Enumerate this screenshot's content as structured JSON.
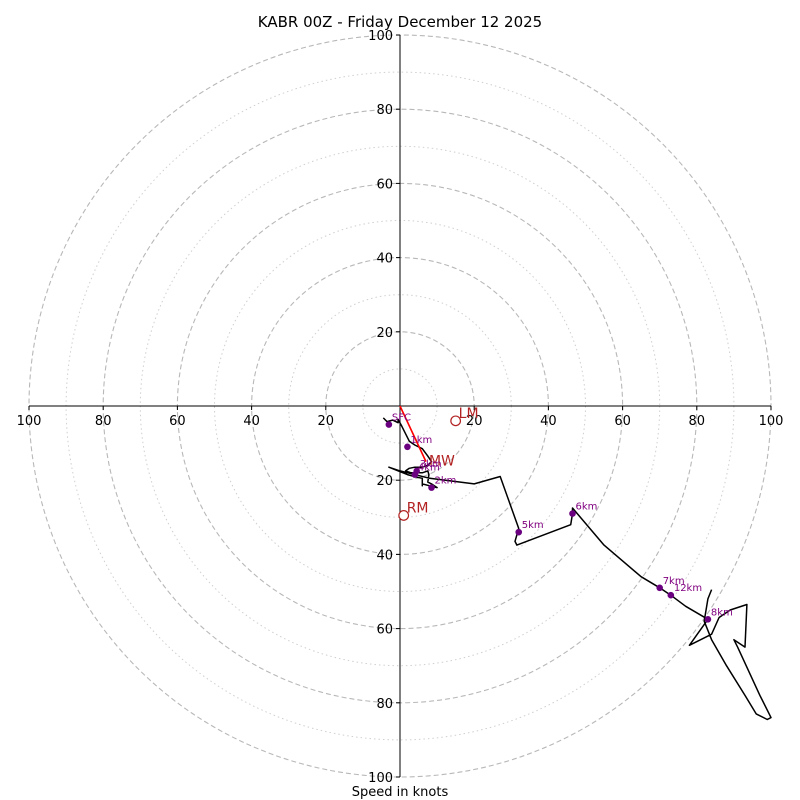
{
  "chart_data": {
    "type": "hodograph",
    "title": "KABR 00Z - Friday December 12 2025",
    "xlabel": "Speed in knots",
    "units": "knots",
    "range": [
      -100,
      100
    ],
    "rings_major": [
      20,
      40,
      60,
      80,
      100
    ],
    "rings_minor": [
      10,
      30,
      50,
      70,
      90
    ],
    "ticks": {
      "x": [
        {
          "value": -100,
          "label": "100"
        },
        {
          "value": -80,
          "label": "80"
        },
        {
          "value": -60,
          "label": "60"
        },
        {
          "value": -40,
          "label": "40"
        },
        {
          "value": -20,
          "label": "20"
        },
        {
          "value": 20,
          "label": "20"
        },
        {
          "value": 40,
          "label": "40"
        },
        {
          "value": 60,
          "label": "60"
        },
        {
          "value": 80,
          "label": "80"
        },
        {
          "value": 100,
          "label": "100"
        }
      ],
      "y": [
        {
          "value": 100,
          "label": "100"
        },
        {
          "value": 80,
          "label": "80"
        },
        {
          "value": 60,
          "label": "60"
        },
        {
          "value": 40,
          "label": "40"
        },
        {
          "value": 20,
          "label": "20"
        },
        {
          "value": -20,
          "label": "20"
        },
        {
          "value": -40,
          "label": "40"
        },
        {
          "value": -60,
          "label": "60"
        },
        {
          "value": -80,
          "label": "80"
        },
        {
          "value": -100,
          "label": "100"
        }
      ]
    },
    "trace": [
      [
        -4.5,
        -3.2
      ],
      [
        -3.5,
        -4.2
      ],
      [
        -2,
        -3.8
      ],
      [
        -0.5,
        -4.5
      ],
      [
        -0.5,
        -3.6
      ],
      [
        0.5,
        -5.5
      ],
      [
        1.5,
        -7.5
      ],
      [
        2.5,
        -9.5
      ],
      [
        4,
        -10.5
      ],
      [
        6,
        -11.5
      ],
      [
        7.5,
        -13.5
      ],
      [
        8.5,
        -15
      ],
      [
        7.5,
        -16
      ],
      [
        6,
        -16.5
      ],
      [
        4,
        -16.5
      ],
      [
        2.5,
        -16.8
      ],
      [
        1.5,
        -17.5
      ],
      [
        3,
        -18
      ],
      [
        6,
        -18
      ],
      [
        7.5,
        -17.5
      ],
      [
        7.8,
        -18.5
      ],
      [
        7.5,
        -20.5
      ],
      [
        8.5,
        -21
      ],
      [
        10,
        -22
      ],
      [
        8,
        -21.5
      ],
      [
        6,
        -21
      ],
      [
        6,
        -21.5
      ],
      [
        6,
        -19.5
      ],
      [
        4.5,
        -19.2
      ],
      [
        2,
        -18.5
      ],
      [
        -3,
        -16.5
      ],
      [
        0,
        -17.5
      ],
      [
        8,
        -19.5
      ],
      [
        20,
        -21
      ],
      [
        27,
        -19
      ],
      [
        32,
        -33
      ],
      [
        31,
        -36.5
      ],
      [
        31.5,
        -37.5
      ],
      [
        46,
        -32
      ],
      [
        46.5,
        -29
      ],
      [
        46.5,
        -27.5
      ],
      [
        55,
        -37.5
      ],
      [
        65,
        -46
      ],
      [
        70,
        -49
      ],
      [
        73,
        -51
      ],
      [
        77,
        -54
      ],
      [
        83,
        -57.5
      ],
      [
        78,
        -64.5
      ],
      [
        84,
        -61.5
      ],
      [
        86,
        -57
      ],
      [
        89,
        -55
      ],
      [
        93.5,
        -53.5
      ],
      [
        93,
        -65
      ],
      [
        90,
        -63
      ],
      [
        91,
        -65
      ],
      [
        97,
        -78
      ],
      [
        100,
        -84
      ],
      [
        99,
        -84.5
      ],
      [
        96,
        -83
      ],
      [
        93,
        -78
      ],
      [
        88,
        -70
      ],
      [
        84,
        -63
      ],
      [
        82,
        -58
      ],
      [
        83,
        -52
      ],
      [
        84,
        -49.5
      ]
    ],
    "height_labels": [
      {
        "label": "SFC",
        "u": -3,
        "v": -5,
        "marker": true
      },
      {
        "label": "1km",
        "u": 2,
        "v": -11,
        "marker": true
      },
      {
        "label": "3km",
        "u": 4.5,
        "v": -17.5,
        "marker": true
      },
      {
        "label": "4km",
        "u": 4,
        "v": -18.5,
        "marker": true
      },
      {
        "label": "2km",
        "u": 8.5,
        "v": -22,
        "marker": true
      },
      {
        "label": "5km",
        "u": 32,
        "v": -34,
        "marker": true
      },
      {
        "label": "6km",
        "u": 46.5,
        "v": -29,
        "marker": true
      },
      {
        "label": "7km",
        "u": 70,
        "v": -49,
        "marker": true
      },
      {
        "label": "12km",
        "u": 73,
        "v": -51,
        "marker": true
      },
      {
        "label": "8km",
        "u": 83,
        "v": -57.5,
        "marker": true
      }
    ],
    "mean_wind_vector": {
      "label": "MW",
      "from": [
        0,
        0
      ],
      "to": [
        7,
        -15
      ]
    },
    "storm_motions": [
      {
        "label": "LM",
        "u": 15,
        "v": -4
      },
      {
        "label": "RM",
        "u": 1,
        "v": -29.5
      }
    ],
    "colors": {
      "trace": "#000000",
      "height_marker": "#6a0080",
      "height_text": "#800080",
      "storm_motion": "#b22222",
      "mean_wind": "#ff0000",
      "ring_major": "#b8b8b8",
      "ring_minor": "#cfcfcf",
      "axis": "#000000"
    }
  }
}
